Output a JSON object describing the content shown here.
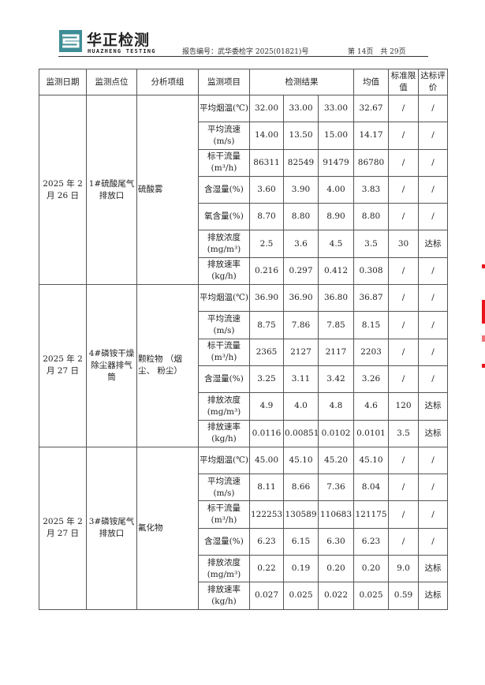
{
  "header": {
    "brand_cn": "华正检测",
    "brand_en": "HUAZHENG TESTING",
    "report_number": "报告编号：武华委检字 2025(01821)号",
    "page_info": "第 14页　共 29页",
    "brand_color": "#3f8d96"
  },
  "table": {
    "headers": [
      "监测日期",
      "监测点位",
      "分析项组",
      "监测项目",
      "检测结果",
      "均值",
      "标准限值",
      "达标评价"
    ],
    "groups": [
      {
        "date": "2025 年 2 月 26 日",
        "location": "1#硫酸尾气排放口",
        "analyte_group": "硫酸雾",
        "rows": [
          {
            "item": "平均烟温(℃)",
            "r1": "32.00",
            "r2": "33.00",
            "r3": "33.00",
            "mean": "32.67",
            "limit": "/",
            "eval": "/"
          },
          {
            "item": "平均流速(m/s)",
            "r1": "14.00",
            "r2": "13.50",
            "r3": "15.00",
            "mean": "14.17",
            "limit": "/",
            "eval": "/"
          },
          {
            "item": "标干流量(m³/h)",
            "r1": "86311",
            "r2": "82549",
            "r3": "91479",
            "mean": "86780",
            "limit": "/",
            "eval": "/"
          },
          {
            "item": "含湿量(%)",
            "r1": "3.60",
            "r2": "3.90",
            "r3": "4.00",
            "mean": "3.83",
            "limit": "/",
            "eval": "/"
          },
          {
            "item": "氧含量(%)",
            "r1": "8.70",
            "r2": "8.80",
            "r3": "8.90",
            "mean": "8.80",
            "limit": "/",
            "eval": "/"
          },
          {
            "item": "排放浓度(mg/m³)",
            "r1": "2.5",
            "r2": "3.6",
            "r3": "4.5",
            "mean": "3.5",
            "limit": "30",
            "eval": "达标"
          },
          {
            "item": "排放速率(kg/h)",
            "r1": "0.216",
            "r2": "0.297",
            "r3": "0.412",
            "mean": "0.308",
            "limit": "/",
            "eval": "/"
          }
        ]
      },
      {
        "date": "2025 年 2 月 27 日",
        "location": "4#磷铵干燥除尘器排气筒",
        "analyte_group": "颗粒物 （烟尘、 粉尘）",
        "rows": [
          {
            "item": "平均烟温(℃)",
            "r1": "36.90",
            "r2": "36.90",
            "r3": "36.80",
            "mean": "36.87",
            "limit": "/",
            "eval": "/"
          },
          {
            "item": "平均流速(m/s)",
            "r1": "8.75",
            "r2": "7.86",
            "r3": "7.85",
            "mean": "8.15",
            "limit": "/",
            "eval": "/"
          },
          {
            "item": "标干流量(m³/h)",
            "r1": "2365",
            "r2": "2127",
            "r3": "2117",
            "mean": "2203",
            "limit": "/",
            "eval": "/"
          },
          {
            "item": "含湿量(%)",
            "r1": "3.25",
            "r2": "3.11",
            "r3": "3.42",
            "mean": "3.26",
            "limit": "/",
            "eval": "/"
          },
          {
            "item": "排放浓度(mg/m³)",
            "r1": "4.9",
            "r2": "4.0",
            "r3": "4.8",
            "mean": "4.6",
            "limit": "120",
            "eval": "达标"
          },
          {
            "item": "排放速率(kg/h)",
            "r1": "0.0116",
            "r2": "0.00851",
            "r3": "0.0102",
            "mean": "0.0101",
            "limit": "3.5",
            "eval": "达标"
          }
        ]
      },
      {
        "date": "2025 年 2 月 27 日",
        "location": "3#磷铵尾气排放口",
        "analyte_group": "氟化物",
        "rows": [
          {
            "item": "平均烟温(℃)",
            "r1": "45.00",
            "r2": "45.10",
            "r3": "45.20",
            "mean": "45.10",
            "limit": "/",
            "eval": "/"
          },
          {
            "item": "平均流速(m/s)",
            "r1": "8.11",
            "r2": "8.66",
            "r3": "7.36",
            "mean": "8.04",
            "limit": "/",
            "eval": "/"
          },
          {
            "item": "标干流量(m³/h)",
            "r1": "122253",
            "r2": "130589",
            "r3": "110683",
            "mean": "121175",
            "limit": "/",
            "eval": "/"
          },
          {
            "item": "含湿量(%)",
            "r1": "6.23",
            "r2": "6.15",
            "r3": "6.30",
            "mean": "6.23",
            "limit": "/",
            "eval": "/"
          },
          {
            "item": "排放浓度(mg/m³)",
            "r1": "0.22",
            "r2": "0.19",
            "r3": "0.20",
            "mean": "0.20",
            "limit": "9.0",
            "eval": "达标"
          },
          {
            "item": "排放速率(kg/h)",
            "r1": "0.027",
            "r2": "0.025",
            "r3": "0.022",
            "mean": "0.025",
            "limit": "0.59",
            "eval": "达标"
          }
        ]
      }
    ]
  }
}
